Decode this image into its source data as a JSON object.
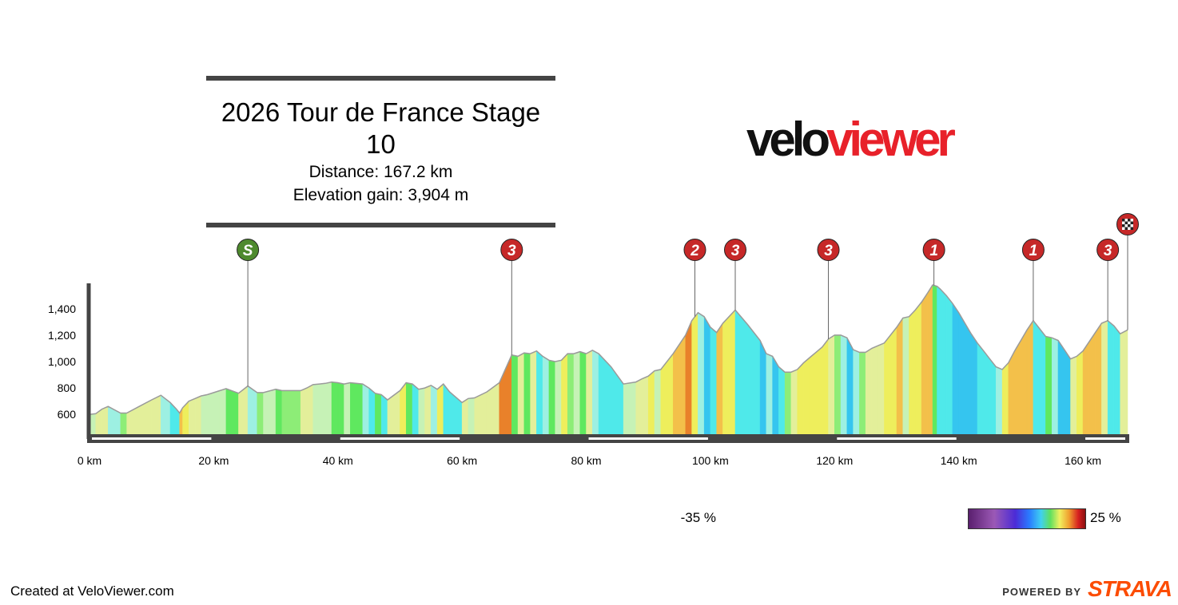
{
  "header": {
    "title": "2026 Tour de France Stage 10",
    "distance": "Distance: 167.2 km",
    "elevation_gain": "Elevation gain: 3,904 m"
  },
  "logo": {
    "part1": "velo",
    "part2": "viewer"
  },
  "colors": {
    "logo_red": "#e8212a",
    "kom_marker": "#c62828",
    "sprint_marker": "#4e8a2e",
    "strava_orange": "#fc4c02",
    "axis": "#444444"
  },
  "chart_data": {
    "type": "area",
    "title": "2026 Tour de France Stage 10",
    "xlabel": "",
    "ylabel": "",
    "x_unit": "km",
    "xlim": [
      0,
      167.2
    ],
    "ylim": [
      450,
      1560
    ],
    "x_ticks": [
      0,
      20,
      40,
      60,
      80,
      100,
      120,
      140,
      160
    ],
    "x_tick_labels": [
      "0 km",
      "20 km",
      "40 km",
      "60 km",
      "80 km",
      "100 km",
      "120 km",
      "140 km",
      "160 km"
    ],
    "y_ticks": [
      600,
      800,
      1000,
      1200,
      1400
    ],
    "y_tick_labels": [
      "600",
      "800",
      "1,000",
      "1,200",
      "1,400"
    ],
    "profile": [
      [
        0,
        600
      ],
      [
        1,
        605
      ],
      [
        2,
        640
      ],
      [
        3,
        660
      ],
      [
        5,
        610
      ],
      [
        6,
        610
      ],
      [
        8,
        660
      ],
      [
        10,
        710
      ],
      [
        11.5,
        745
      ],
      [
        13,
        690
      ],
      [
        14,
        640
      ],
      [
        14.5,
        610
      ],
      [
        15,
        650
      ],
      [
        16,
        700
      ],
      [
        17,
        720
      ],
      [
        18,
        740
      ],
      [
        19,
        750
      ],
      [
        20,
        765
      ],
      [
        21,
        780
      ],
      [
        22,
        795
      ],
      [
        24,
        760
      ],
      [
        25.5,
        815
      ],
      [
        27,
        765
      ],
      [
        28,
        765
      ],
      [
        30,
        790
      ],
      [
        31,
        780
      ],
      [
        32,
        780
      ],
      [
        34,
        780
      ],
      [
        35,
        800
      ],
      [
        36,
        825
      ],
      [
        37,
        830
      ],
      [
        38,
        835
      ],
      [
        39,
        845
      ],
      [
        40,
        840
      ],
      [
        41,
        830
      ],
      [
        42,
        840
      ],
      [
        44,
        830
      ],
      [
        45,
        800
      ],
      [
        46,
        760
      ],
      [
        47,
        750
      ],
      [
        48,
        710
      ],
      [
        50,
        780
      ],
      [
        51,
        840
      ],
      [
        52,
        830
      ],
      [
        53,
        790
      ],
      [
        54,
        800
      ],
      [
        55,
        820
      ],
      [
        56,
        790
      ],
      [
        57,
        830
      ],
      [
        58,
        770
      ],
      [
        60,
        690
      ],
      [
        61,
        720
      ],
      [
        62,
        725
      ],
      [
        64,
        770
      ],
      [
        66,
        840
      ],
      [
        68,
        1050
      ],
      [
        69,
        1040
      ],
      [
        70,
        1065
      ],
      [
        71,
        1060
      ],
      [
        72,
        1080
      ],
      [
        73,
        1040
      ],
      [
        74,
        1010
      ],
      [
        75,
        1000
      ],
      [
        76,
        1010
      ],
      [
        77,
        1060
      ],
      [
        78,
        1060
      ],
      [
        79,
        1075
      ],
      [
        80,
        1060
      ],
      [
        81,
        1085
      ],
      [
        82,
        1060
      ],
      [
        84,
        960
      ],
      [
        86,
        830
      ],
      [
        88,
        845
      ],
      [
        89,
        870
      ],
      [
        90,
        890
      ],
      [
        91,
        930
      ],
      [
        92,
        940
      ],
      [
        94,
        1060
      ],
      [
        96,
        1200
      ],
      [
        97,
        1310
      ],
      [
        98,
        1370
      ],
      [
        99,
        1340
      ],
      [
        100,
        1260
      ],
      [
        101,
        1220
      ],
      [
        102,
        1290
      ],
      [
        104,
        1390
      ],
      [
        106,
        1280
      ],
      [
        108,
        1160
      ],
      [
        109,
        1060
      ],
      [
        110,
        1040
      ],
      [
        111,
        960
      ],
      [
        112,
        920
      ],
      [
        113,
        920
      ],
      [
        114,
        940
      ],
      [
        115,
        990
      ],
      [
        116,
        1030
      ],
      [
        117,
        1070
      ],
      [
        118,
        1110
      ],
      [
        119,
        1170
      ],
      [
        120,
        1200
      ],
      [
        121,
        1200
      ],
      [
        122,
        1180
      ],
      [
        123,
        1090
      ],
      [
        124,
        1070
      ],
      [
        125,
        1070
      ],
      [
        126,
        1100
      ],
      [
        127,
        1120
      ],
      [
        128,
        1140
      ],
      [
        130,
        1260
      ],
      [
        131,
        1330
      ],
      [
        132,
        1340
      ],
      [
        133,
        1390
      ],
      [
        134,
        1450
      ],
      [
        135,
        1520
      ],
      [
        135.8,
        1580
      ],
      [
        136.5,
        1570
      ],
      [
        137,
        1550
      ],
      [
        138,
        1500
      ],
      [
        139,
        1440
      ],
      [
        140,
        1370
      ],
      [
        141,
        1290
      ],
      [
        142,
        1210
      ],
      [
        143,
        1140
      ],
      [
        144,
        1080
      ],
      [
        145,
        1020
      ],
      [
        146,
        960
      ],
      [
        147,
        940
      ],
      [
        148,
        990
      ],
      [
        149,
        1080
      ],
      [
        150,
        1160
      ],
      [
        151,
        1240
      ],
      [
        152,
        1310
      ],
      [
        153,
        1250
      ],
      [
        154,
        1190
      ],
      [
        155,
        1180
      ],
      [
        156,
        1160
      ],
      [
        157,
        1090
      ],
      [
        158,
        1020
      ],
      [
        159,
        1040
      ],
      [
        160,
        1080
      ],
      [
        161,
        1150
      ],
      [
        162,
        1220
      ],
      [
        163,
        1290
      ],
      [
        164,
        1310
      ],
      [
        165,
        1270
      ],
      [
        166,
        1210
      ],
      [
        167.2,
        1240
      ]
    ],
    "markers": [
      {
        "km": 25.5,
        "label": "S",
        "type": "sprint"
      },
      {
        "km": 68,
        "label": "3",
        "type": "kom"
      },
      {
        "km": 97.5,
        "label": "2",
        "type": "kom"
      },
      {
        "km": 104,
        "label": "3",
        "type": "kom"
      },
      {
        "km": 119,
        "label": "3",
        "type": "kom"
      },
      {
        "km": 136,
        "label": "1",
        "type": "kom"
      },
      {
        "km": 152,
        "label": "1",
        "type": "kom"
      },
      {
        "km": 164,
        "label": "3",
        "type": "kom"
      },
      {
        "km": 167.2,
        "label": "",
        "type": "finish"
      }
    ],
    "legend": {
      "min_label": "-35 %",
      "max_label": "25 %",
      "placement": "bottom-right"
    }
  },
  "footer": {
    "created": "Created at VeloViewer.com",
    "powered": "POWERED BY",
    "strava": "STRAVA"
  }
}
